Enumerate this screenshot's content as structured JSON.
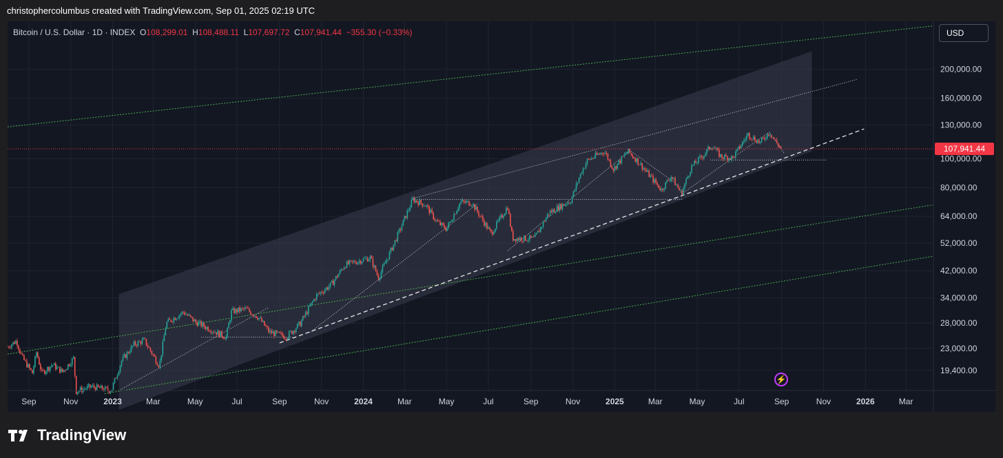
{
  "attribution": "christophercolumbus created with TradingView.com, Sep 01, 2025 02:19 UTC",
  "currency_button": "USD",
  "brand": "TradingView",
  "legend": {
    "symbol": "Bitcoin / U.S. Dollar · 1D · INDEX",
    "o_label": "O",
    "o_value": "108,299.01",
    "h_label": "H",
    "h_value": "108,488.11",
    "l_label": "L",
    "l_value": "107,697.72",
    "c_label": "C",
    "c_value": "107,941.44",
    "change": "−355.30 (−0.33%)"
  },
  "colors": {
    "up": "#26a69a",
    "down": "#ef5350",
    "price_label_bg": "#f23645",
    "channel_line": "#4caf50",
    "band_fill": "#2a2e39"
  },
  "chart_data": {
    "type": "candlestick",
    "title": "Bitcoin / U.S. Dollar · 1D · INDEX",
    "scale": "log",
    "ylim": [
      16600,
      290000
    ],
    "xlim": [
      "2022-08-01",
      "2026-04-10"
    ],
    "y_ticks": [
      19400,
      23000,
      28000,
      34000,
      42000,
      52000,
      64000,
      80000,
      100000,
      130000,
      160000,
      200000
    ],
    "y_tick_labels": [
      "19,400.00",
      "23,000.00",
      "28,000.00",
      "34,000.00",
      "42,000.00",
      "52,000.00",
      "64,000.00",
      "80,000.00",
      "100,000.00",
      "130,000.00",
      "160,000.00",
      "200,000.00"
    ],
    "x_ticks": [
      {
        "label": "Sep",
        "date": "2022-09-01"
      },
      {
        "label": "Nov",
        "date": "2022-11-01"
      },
      {
        "label": "2023",
        "date": "2023-01-01",
        "bold": true
      },
      {
        "label": "Mar",
        "date": "2023-03-01"
      },
      {
        "label": "May",
        "date": "2023-05-01"
      },
      {
        "label": "Jul",
        "date": "2023-07-01"
      },
      {
        "label": "Sep",
        "date": "2023-09-01"
      },
      {
        "label": "Nov",
        "date": "2023-11-01"
      },
      {
        "label": "2024",
        "date": "2024-01-01",
        "bold": true
      },
      {
        "label": "Mar",
        "date": "2024-03-01"
      },
      {
        "label": "May",
        "date": "2024-05-01"
      },
      {
        "label": "Jul",
        "date": "2024-07-01"
      },
      {
        "label": "Sep",
        "date": "2024-09-01"
      },
      {
        "label": "Nov",
        "date": "2024-11-01"
      },
      {
        "label": "2025",
        "date": "2025-01-01",
        "bold": true
      },
      {
        "label": "Mar",
        "date": "2025-03-01"
      },
      {
        "label": "May",
        "date": "2025-05-01"
      },
      {
        "label": "Jul",
        "date": "2025-07-01"
      },
      {
        "label": "Sep",
        "date": "2025-09-01"
      },
      {
        "label": "Nov",
        "date": "2025-11-01"
      },
      {
        "label": "2026",
        "date": "2026-01-01",
        "bold": true
      },
      {
        "label": "Mar",
        "date": "2026-03-01"
      }
    ],
    "last_price": 107941.44,
    "last_price_label": "107,941.44",
    "price_path": [
      [
        "2022-08-01",
        23300
      ],
      [
        "2022-08-14",
        24400
      ],
      [
        "2022-08-22",
        21500
      ],
      [
        "2022-09-06",
        19000
      ],
      [
        "2022-09-12",
        22300
      ],
      [
        "2022-09-20",
        19000
      ],
      [
        "2022-10-05",
        20300
      ],
      [
        "2022-10-20",
        19200
      ],
      [
        "2022-11-05",
        21300
      ],
      [
        "2022-11-09",
        16500
      ],
      [
        "2022-12-01",
        17100
      ],
      [
        "2022-12-30",
        16600
      ],
      [
        "2023-01-14",
        20900
      ],
      [
        "2023-02-01",
        23700
      ],
      [
        "2023-02-16",
        24500
      ],
      [
        "2023-03-10",
        20100
      ],
      [
        "2023-03-20",
        28000
      ],
      [
        "2023-04-14",
        30500
      ],
      [
        "2023-05-01",
        28300
      ],
      [
        "2023-06-15",
        25100
      ],
      [
        "2023-06-23",
        30600
      ],
      [
        "2023-07-14",
        31200
      ],
      [
        "2023-08-01",
        29300
      ],
      [
        "2023-08-17",
        26100
      ],
      [
        "2023-09-11",
        25200
      ],
      [
        "2023-10-01",
        27900
      ],
      [
        "2023-10-24",
        34500
      ],
      [
        "2023-11-15",
        37700
      ],
      [
        "2023-12-05",
        43900
      ],
      [
        "2024-01-11",
        46500
      ],
      [
        "2024-01-23",
        39800
      ],
      [
        "2024-02-15",
        52000
      ],
      [
        "2024-03-13",
        73000
      ],
      [
        "2024-04-01",
        69700
      ],
      [
        "2024-04-17",
        61300
      ],
      [
        "2024-05-01",
        58000
      ],
      [
        "2024-05-21",
        71400
      ],
      [
        "2024-06-07",
        71000
      ],
      [
        "2024-07-05",
        56000
      ],
      [
        "2024-07-29",
        69000
      ],
      [
        "2024-08-05",
        54000
      ],
      [
        "2024-09-06",
        53800
      ],
      [
        "2024-09-27",
        65800
      ],
      [
        "2024-10-29",
        72300
      ],
      [
        "2024-11-13",
        90000
      ],
      [
        "2024-11-22",
        98500
      ],
      [
        "2024-12-17",
        106100
      ],
      [
        "2024-12-30",
        92300
      ],
      [
        "2025-01-20",
        106000
      ],
      [
        "2025-02-03",
        98500
      ],
      [
        "2025-02-27",
        84300
      ],
      [
        "2025-03-10",
        78600
      ],
      [
        "2025-03-24",
        87500
      ],
      [
        "2025-04-08",
        76300
      ],
      [
        "2025-04-22",
        93500
      ],
      [
        "2025-05-12",
        104000
      ],
      [
        "2025-05-22",
        111000
      ],
      [
        "2025-06-05",
        101500
      ],
      [
        "2025-06-22",
        100800
      ],
      [
        "2025-07-14",
        121000
      ],
      [
        "2025-08-01",
        113200
      ],
      [
        "2025-08-14",
        123000
      ],
      [
        "2025-08-24",
        113500
      ],
      [
        "2025-09-01",
        107941
      ]
    ],
    "drawings": {
      "upper_channel_green": [
        [
          "2022-08-01",
          128000
        ],
        [
          "2026-04-10",
          280000
        ]
      ],
      "middle_channel_green_upper": [
        [
          "2022-08-01",
          22000
        ],
        [
          "2026-04-10",
          70000
        ]
      ],
      "middle_channel_green_lower": [
        [
          "2022-12-20",
          16200
        ],
        [
          "2026-04-10",
          47000
        ]
      ],
      "shaded_band": {
        "top": [
          [
            "2023-01-10",
            35000
          ],
          [
            "2025-10-15",
            230000
          ]
        ],
        "bottom": [
          [
            "2023-01-10",
            14300
          ],
          [
            "2025-10-15",
            106000
          ]
        ]
      },
      "trend_dashed": [
        [
          "2023-09-01",
          24000
        ],
        [
          "2025-12-30",
          126000
        ]
      ],
      "upper_dotted": [
        [
          "2024-03-13",
          73500
        ],
        [
          "2025-12-20",
          185000
        ]
      ],
      "horizontal_dotted_1": {
        "from": "2024-03-13",
        "to": "2025-04-10",
        "y": 73000
      },
      "horizontal_dotted_2": {
        "from": "2023-05-10",
        "to": "2023-09-20",
        "y": 25100
      },
      "horizontal_dotted_3": {
        "from": "2025-05-20",
        "to": "2025-11-05",
        "y": 99000
      },
      "diagonal_dotted_1": [
        [
          "2023-01-10",
          16600
        ],
        [
          "2023-08-15",
          31500
        ]
      ],
      "diagonal_dotted_2": [
        [
          "2023-10-15",
          26000
        ],
        [
          "2024-06-15",
          70500
        ]
      ],
      "diagonal_dotted_3": [
        [
          "2024-07-29",
          49000
        ],
        [
          "2025-01-22",
          106000
        ]
      ],
      "diagonal_dotted_4": [
        [
          "2025-04-08",
          76000
        ],
        [
          "2025-08-14",
          123000
        ]
      ],
      "wedge_dotted_a": [
        [
          "2025-01-20",
          108000
        ],
        [
          "2025-04-08",
          80000
        ]
      ],
      "wedge_dotted_b": [
        [
          "2025-08-14",
          123000
        ],
        [
          "2025-09-05",
          104000
        ]
      ]
    }
  }
}
